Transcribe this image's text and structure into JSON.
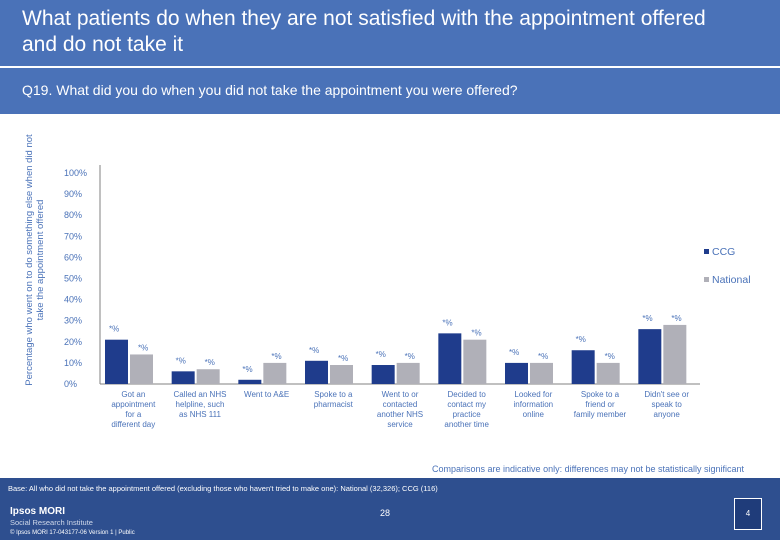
{
  "title": "What patients do when they are not satisfied with the appointment offered and do not take it",
  "question": "Q19. What did you do when you did not take the appointment you were offered?",
  "chart_data": {
    "type": "bar",
    "ylabel": "Percentage who went on to do something else when did not take the appointment offered",
    "ylim": [
      0,
      100
    ],
    "yticks": [
      "0%",
      "10%",
      "20%",
      "30%",
      "40%",
      "50%",
      "60%",
      "70%",
      "80%",
      "90%",
      "100%"
    ],
    "categories": [
      "Got an appointment for a different day",
      "Called an NHS helpline, such as NHS 111",
      "Went to A&E",
      "Spoke to a pharmacist",
      "Went to or contacted another NHS service",
      "Decided to contact my practice another time",
      "Looked for information online",
      "Spoke to a friend or family member",
      "Didn't see or speak to anyone"
    ],
    "series": [
      {
        "name": "CCG",
        "color": "#1f3c8c",
        "values": [
          21,
          6,
          2,
          11,
          9,
          24,
          10,
          16,
          26
        ],
        "labels": [
          "*%",
          "*%",
          "*%",
          "*%",
          "*%",
          "*%",
          "*%",
          "*%",
          "*%"
        ]
      },
      {
        "name": "National",
        "color": "#b0b0b8",
        "values": [
          14,
          7,
          10,
          9,
          10,
          21,
          10,
          10,
          28
        ],
        "labels": [
          "*%",
          "*%",
          "*%",
          "*%",
          "*%",
          "*%",
          "*%",
          "*%",
          "*%"
        ]
      }
    ],
    "legend": [
      "CCG",
      "National"
    ]
  },
  "comparison_note": "Comparisons are indicative only: differences may not be statistically significant",
  "footer": {
    "base": "Base: All who did not take the appointment offered (excluding those who haven't tried to make one): National (32,326); CCG (116)",
    "logo_line1": "Ipsos MORI",
    "logo_line2": "Social Research Institute",
    "copyright": "© Ipsos MORI     17-043177-06 Version 1 | Public",
    "page": "28",
    "badge": "4"
  }
}
